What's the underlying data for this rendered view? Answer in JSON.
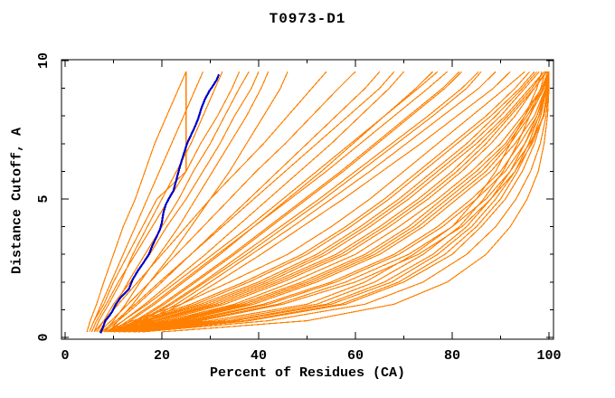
{
  "title": "T0973-D1",
  "chart_data": {
    "type": "line",
    "title": "T0973-D1",
    "xlabel": "Percent of Residues (CA)",
    "ylabel": "Distance Cutoff, A",
    "xlim": [
      0,
      100
    ],
    "ylim": [
      0,
      10
    ],
    "x_major_ticks": [
      0,
      20,
      40,
      60,
      80,
      100
    ],
    "x_minor_ticks": [
      10,
      30,
      50,
      70,
      90
    ],
    "y_major_ticks": [
      0,
      5,
      10
    ],
    "y_minor_ticks": [
      1,
      2,
      3,
      4,
      6,
      7,
      8,
      9
    ],
    "x_tick_labels": [
      "0",
      "20",
      "40",
      "60",
      "80",
      "100"
    ],
    "y_tick_labels": [
      "0",
      "5",
      "10"
    ],
    "legend": "none",
    "grid": false,
    "colors": {
      "model": "#ff8000",
      "highlight": "#0000cd",
      "axis": "#000000",
      "background": "#ffffff"
    },
    "dist_levels": [
      0.2,
      0.6,
      1.2,
      2,
      3,
      4,
      5,
      6,
      7,
      8,
      9,
      9.6
    ],
    "models": [
      [
        4.5,
        5.2,
        6.5,
        8,
        10,
        12,
        14.5,
        16.5,
        18.5,
        21,
        23.5,
        25
      ],
      [
        5,
        6,
        7.5,
        9.5,
        12,
        14.5,
        17,
        19.5,
        22,
        24.5,
        27,
        28.5
      ],
      [
        6,
        7,
        9,
        11.5,
        14,
        17,
        20,
        23,
        26,
        28.5,
        31,
        32.5
      ],
      [
        7,
        8.5,
        10.5,
        13,
        16.5,
        20,
        23.5,
        26.5,
        30,
        33,
        36,
        38
      ],
      [
        5.5,
        6.5,
        8.5,
        11,
        14.5,
        18,
        21.5,
        25,
        28,
        31.5,
        34.5,
        36
      ],
      [
        8,
        10,
        12.5,
        15.5,
        19.5,
        23.5,
        27,
        30.5,
        34,
        37.5,
        40.5,
        42
      ],
      [
        6.5,
        8,
        10,
        13.5,
        17.5,
        21,
        25,
        28.5,
        32,
        35,
        38.5,
        40
      ],
      [
        9,
        11,
        14,
        17.5,
        22,
        26,
        30,
        34,
        37.5,
        41,
        44.5,
        46
      ],
      [
        5,
        6,
        8,
        10,
        13,
        16,
        19,
        25,
        25,
        25,
        25,
        25
      ],
      [
        6,
        8,
        11,
        15,
        20,
        25,
        30,
        35.5,
        41,
        46,
        51,
        54
      ],
      [
        7,
        9.5,
        13,
        17.5,
        23,
        28.5,
        34,
        39.5,
        45.5,
        51,
        56.5,
        60
      ],
      [
        8,
        11,
        15,
        20,
        26,
        32,
        38,
        44,
        50,
        56,
        62,
        65
      ],
      [
        9,
        12,
        16.5,
        22,
        29,
        35.5,
        42,
        48.5,
        55,
        61,
        67,
        70
      ],
      [
        10,
        13.5,
        18.5,
        24.5,
        32,
        39,
        46,
        53,
        59.5,
        66,
        72.5,
        76
      ],
      [
        8.5,
        12,
        17,
        23,
        30.5,
        38,
        45,
        52,
        59,
        66,
        73,
        77
      ],
      [
        11,
        15,
        20.5,
        27,
        35,
        42.5,
        50,
        57.5,
        64.5,
        71.5,
        78.5,
        82
      ],
      [
        9.5,
        13,
        18,
        24,
        31.5,
        39,
        46.5,
        54,
        61,
        68,
        75,
        79
      ],
      [
        12,
        16,
        22,
        29,
        37.5,
        45.5,
        53.5,
        61,
        68.5,
        76,
        83,
        86
      ],
      [
        10.5,
        14.5,
        20,
        26.5,
        34.5,
        42,
        49.5,
        57,
        64,
        71,
        78,
        81.5
      ],
      [
        7.5,
        10.5,
        14.5,
        19.5,
        26,
        32.5,
        39,
        45.5,
        52,
        58.5,
        65,
        68
      ],
      [
        13,
        17.5,
        24,
        31.5,
        40.5,
        49,
        57.5,
        65.5,
        73.5,
        81,
        88.5,
        92
      ],
      [
        11.5,
        15.5,
        21.5,
        28.5,
        36.5,
        44.5,
        52.5,
        60,
        67.5,
        75,
        82,
        85.5
      ],
      [
        12.5,
        17,
        23,
        30,
        38.5,
        47,
        55,
        63,
        70.5,
        78,
        85.5,
        89
      ],
      [
        8,
        14,
        24,
        34,
        46,
        55,
        63,
        70,
        77,
        84,
        91,
        95
      ],
      [
        9,
        16,
        27,
        38,
        50,
        59,
        67,
        74,
        81,
        88,
        94,
        97
      ],
      [
        10,
        18,
        30,
        42,
        54,
        63,
        71,
        78,
        85,
        91,
        96,
        99
      ],
      [
        11,
        20,
        33,
        45,
        58,
        67,
        75,
        82,
        88,
        93,
        97,
        99.6
      ],
      [
        12,
        22,
        36,
        49,
        62,
        71,
        78,
        85,
        91,
        95,
        98.5,
        100
      ],
      [
        13,
        24,
        39,
        52,
        65,
        74,
        81,
        88,
        93,
        97,
        99.3,
        100
      ],
      [
        9.5,
        17,
        29,
        41,
        53,
        62,
        70,
        77,
        84,
        90,
        95,
        98
      ],
      [
        14,
        26,
        42,
        56,
        69,
        78,
        85,
        91,
        95,
        98,
        99.7,
        100
      ],
      [
        10.5,
        19,
        32,
        44,
        57,
        66,
        74,
        81,
        87,
        92,
        97,
        99.4
      ],
      [
        12.5,
        23,
        38,
        51,
        64,
        73,
        80,
        87,
        92,
        96,
        99,
        99.9
      ],
      [
        8.5,
        15,
        26,
        37,
        49,
        58,
        66,
        73,
        80,
        87,
        93,
        96
      ],
      [
        13.5,
        25,
        41,
        55,
        68,
        77,
        84,
        90,
        94,
        97.5,
        99.6,
        100
      ],
      [
        11.5,
        21,
        35,
        47,
        60,
        69,
        77,
        84,
        90,
        94.5,
        98.5,
        99.8
      ],
      [
        14.5,
        27,
        44,
        58,
        71,
        80,
        87,
        92,
        96,
        99,
        99.9,
        100
      ],
      [
        9,
        16.5,
        28,
        40,
        52,
        61,
        69,
        76,
        83,
        89,
        94.5,
        97.5
      ],
      [
        15,
        28,
        45,
        60,
        73,
        82,
        88,
        93,
        96.5,
        98.8,
        99.8,
        100
      ],
      [
        10,
        18.5,
        31,
        43,
        56,
        65,
        73,
        80,
        86,
        91.5,
        96.5,
        99
      ],
      [
        12,
        22.5,
        37,
        50,
        63,
        72,
        79,
        86,
        91.5,
        95.5,
        98.8,
        99.9
      ],
      [
        10,
        30,
        50,
        62,
        72,
        80,
        85,
        89,
        92,
        95,
        97.5,
        98.5
      ],
      [
        12,
        34,
        54,
        66,
        76,
        83,
        88,
        92,
        95,
        97.5,
        99.3,
        99.8
      ],
      [
        15,
        38,
        58,
        70,
        80,
        86,
        91,
        94.5,
        97,
        98.8,
        99.7,
        100
      ],
      [
        11,
        32,
        52,
        64,
        74,
        81.5,
        86.5,
        90.5,
        93.5,
        96,
        98.3,
        99.2
      ],
      [
        14,
        37,
        57,
        69,
        78.5,
        85,
        90,
        93.5,
        96.3,
        98.3,
        99.5,
        99.9
      ],
      [
        13,
        35,
        55,
        67.5,
        77,
        84,
        89,
        93,
        95.8,
        97.9,
        99.4,
        99.8
      ],
      [
        16,
        42,
        62,
        74,
        83,
        89,
        93.2,
        96.2,
        98.2,
        99.4,
        99.9,
        100
      ],
      [
        20,
        50,
        68,
        79,
        87,
        92,
        95.5,
        97.8,
        99,
        99.7,
        100,
        100
      ]
    ],
    "highlight": {
      "name": "highlighted-model",
      "points": [
        [
          7.3,
          0.15
        ],
        [
          7.8,
          0.35
        ],
        [
          8.3,
          0.6
        ],
        [
          9.0,
          0.75
        ],
        [
          9.6,
          0.9
        ],
        [
          10.5,
          1.2
        ],
        [
          11.5,
          1.45
        ],
        [
          12.4,
          1.6
        ],
        [
          13.2,
          1.75
        ],
        [
          14.0,
          2.1
        ],
        [
          15.0,
          2.4
        ],
        [
          16.2,
          2.7
        ],
        [
          17.3,
          3.0
        ],
        [
          18.0,
          3.3
        ],
        [
          18.8,
          3.6
        ],
        [
          19.6,
          3.9
        ],
        [
          20.0,
          4.15
        ],
        [
          20.3,
          4.5
        ],
        [
          20.8,
          4.8
        ],
        [
          21.4,
          5.0
        ],
        [
          22.4,
          5.3
        ],
        [
          23.0,
          5.7
        ],
        [
          23.6,
          6.1
        ],
        [
          24.3,
          6.5
        ],
        [
          25.2,
          7.0
        ],
        [
          26.0,
          7.3
        ],
        [
          26.8,
          7.6
        ],
        [
          27.5,
          7.9
        ],
        [
          28.2,
          8.3
        ],
        [
          28.9,
          8.6
        ],
        [
          29.8,
          8.9
        ],
        [
          30.6,
          9.1
        ],
        [
          31.3,
          9.3
        ],
        [
          31.8,
          9.5
        ]
      ]
    }
  }
}
